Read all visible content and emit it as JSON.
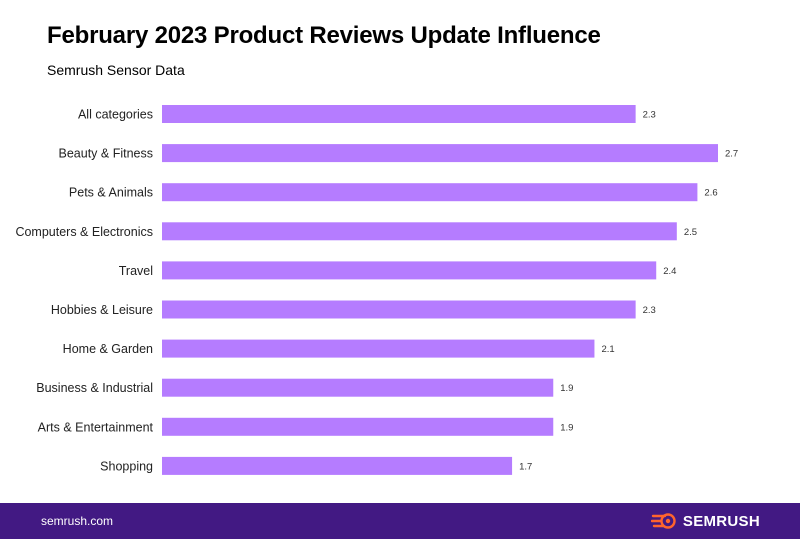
{
  "header": {
    "title": "February 2023 Product Reviews Update Influence",
    "subtitle": "Semrush Sensor Data"
  },
  "colors": {
    "bar": "#b57cff",
    "footer_bg": "#421983",
    "brand_accent": "#ff642d"
  },
  "footer": {
    "url": "semrush.com",
    "brand_name": "SEMRUSH",
    "brand_icon": "semrush-flame-icon"
  },
  "chart_data": {
    "type": "bar",
    "orientation": "horizontal",
    "title": "February 2023 Product Reviews Update Influence",
    "subtitle": "Semrush Sensor Data",
    "xlabel": "",
    "ylabel": "",
    "xlim": [
      0,
      2.7
    ],
    "grid": false,
    "categories": [
      "All categories",
      "Beauty & Fitness",
      "Pets & Animals",
      "Computers & Electronics",
      "Travel",
      "Hobbies & Leisure",
      "Home & Garden",
      "Business & Industrial",
      "Arts & Entertainment",
      "Shopping"
    ],
    "values": [
      2.3,
      2.7,
      2.6,
      2.5,
      2.4,
      2.3,
      2.1,
      1.9,
      1.9,
      1.7
    ],
    "value_labels": [
      "2.3",
      "2.7",
      "2.6",
      "2.5",
      "2.4",
      "2.3",
      "2.1",
      "1.9",
      "1.9",
      "1.7"
    ]
  }
}
